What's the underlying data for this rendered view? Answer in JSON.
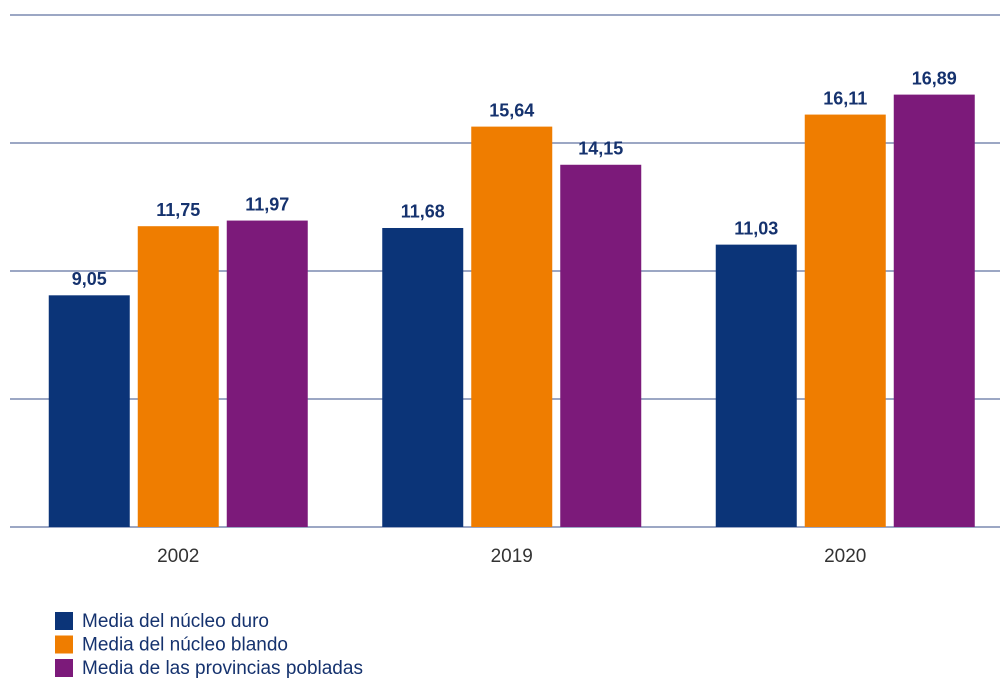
{
  "chart_data": {
    "type": "bar",
    "categories": [
      "2002",
      "2019",
      "2020"
    ],
    "series": [
      {
        "name": "Media del núcleo duro",
        "color": "#0b3478",
        "values": [
          9.05,
          11.68,
          11.03
        ],
        "value_labels": [
          "9,05",
          "11,68",
          "11,03"
        ]
      },
      {
        "name": "Media del núcleo blando",
        "color": "#ef7d00",
        "values": [
          11.75,
          15.64,
          16.11
        ],
        "value_labels": [
          "11,75",
          "15,64",
          "16,11"
        ]
      },
      {
        "name": "Media de las provincias pobladas",
        "color": "#7c1a7a",
        "values": [
          11.97,
          14.15,
          16.89
        ],
        "value_labels": [
          "11,97",
          "14,15",
          "16,89"
        ]
      }
    ],
    "ylim": [
      0,
      20
    ],
    "yticks": [
      0,
      5,
      10,
      15,
      20
    ],
    "grid": true
  }
}
